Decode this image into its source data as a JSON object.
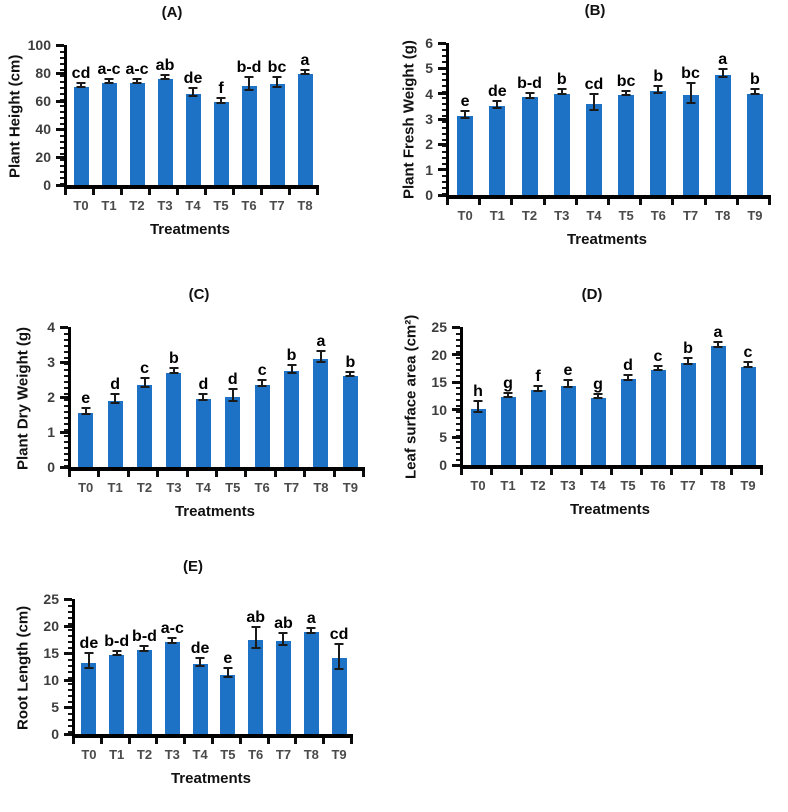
{
  "figure": {
    "bar_color": "#1E72C6",
    "error_color": "#1a1a1a",
    "axis_color": "#000000"
  },
  "chart_data": [
    {
      "type": "bar",
      "panel": "(A)",
      "ylabel": "Plant Height (cm)",
      "xlabel": "Treatments",
      "categories": [
        "T0",
        "T1",
        "T2",
        "T3",
        "T4",
        "T5",
        "T6",
        "T7",
        "T8"
      ],
      "values": [
        70,
        73,
        73,
        76,
        65,
        59,
        71,
        72,
        79
      ],
      "errors": [
        1.0,
        0.6,
        0.6,
        0.7,
        2.0,
        1.0,
        4.0,
        3.0,
        0.7
      ],
      "letters": [
        "cd",
        "a-c",
        "a-c",
        "ab",
        "de",
        "f",
        "b-d",
        "bc",
        "a"
      ],
      "ylim": [
        0,
        100
      ],
      "yticks": [
        100,
        80,
        60,
        40,
        20,
        0
      ],
      "grid": false,
      "legend": "none"
    },
    {
      "type": "bar",
      "panel": "(B)",
      "ylabel": "Plant Fresh Weight (g)",
      "xlabel": "Treatments",
      "categories": [
        "T0",
        "T1",
        "T2",
        "T3",
        "T4",
        "T5",
        "T6",
        "T7",
        "T8",
        "T9"
      ],
      "values": [
        3.1,
        3.5,
        3.85,
        4.0,
        3.6,
        3.95,
        4.1,
        3.95,
        4.75,
        4.0
      ],
      "errors": [
        0.08,
        0.1,
        0.05,
        0.07,
        0.27,
        0.05,
        0.1,
        0.35,
        0.12,
        0.07
      ],
      "letters": [
        "e",
        "de",
        "b-d",
        "b",
        "cd",
        "bc",
        "b",
        "bc",
        "a",
        "b"
      ],
      "ylim": [
        0,
        6
      ],
      "yticks": [
        6,
        5,
        4,
        3,
        2,
        1,
        0
      ],
      "grid": false,
      "legend": "none"
    },
    {
      "type": "bar",
      "panel": "(C)",
      "ylabel": "Plant Dry Weight (g)",
      "xlabel": "Treatments",
      "categories": [
        "T0",
        "T1",
        "T2",
        "T3",
        "T4",
        "T5",
        "T6",
        "T7",
        "T8",
        "T9"
      ],
      "values": [
        1.55,
        1.9,
        2.35,
        2.7,
        1.95,
        2.0,
        2.35,
        2.75,
        3.1,
        2.6
      ],
      "errors": [
        0.05,
        0.1,
        0.1,
        0.05,
        0.05,
        0.15,
        0.05,
        0.08,
        0.12,
        0.03
      ],
      "letters": [
        "e",
        "d",
        "c",
        "b",
        "d",
        "d",
        "c",
        "b",
        "a",
        "b"
      ],
      "ylim": [
        0,
        4
      ],
      "yticks": [
        4,
        3,
        2,
        1,
        0
      ],
      "grid": false,
      "legend": "none"
    },
    {
      "type": "bar",
      "panel": "(D)",
      "ylabel": "Leaf surface area (cm²)",
      "xlabel": "Treatments",
      "categories": [
        "T0",
        "T1",
        "T2",
        "T3",
        "T4",
        "T5",
        "T6",
        "T7",
        "T8",
        "T9"
      ],
      "values": [
        10.2,
        12.3,
        13.5,
        14.4,
        12.2,
        15.5,
        17.2,
        18.5,
        21.5,
        17.8
      ],
      "errors": [
        0.8,
        0.25,
        0.3,
        0.45,
        0.2,
        0.25,
        0.25,
        0.3,
        0.3,
        0.25
      ],
      "letters": [
        "h",
        "g",
        "f",
        "e",
        "g",
        "d",
        "c",
        "b",
        "a",
        "c"
      ],
      "ylim": [
        0,
        25
      ],
      "yticks": [
        25,
        20,
        15,
        10,
        5,
        0
      ],
      "grid": false,
      "legend": "none"
    },
    {
      "type": "bar",
      "panel": "(E)",
      "ylabel": "Root Length (cm)",
      "xlabel": "Treatments",
      "categories": [
        "T0",
        "T1",
        "T2",
        "T3",
        "T4",
        "T5",
        "T6",
        "T7",
        "T8",
        "T9"
      ],
      "values": [
        13.2,
        14.7,
        15.5,
        17.0,
        13.0,
        11.0,
        17.5,
        17.2,
        18.8,
        14.0
      ],
      "errors": [
        1.2,
        0.2,
        0.25,
        0.3,
        0.5,
        0.7,
        1.8,
        0.9,
        0.25,
        2.2
      ],
      "letters": [
        "de",
        "b-d",
        "b-d",
        "a-c",
        "de",
        "e",
        "ab",
        "ab",
        "a",
        "cd"
      ],
      "ylim": [
        0,
        25
      ],
      "yticks": [
        25,
        20,
        15,
        10,
        5,
        0
      ],
      "grid": false,
      "legend": "none"
    }
  ]
}
